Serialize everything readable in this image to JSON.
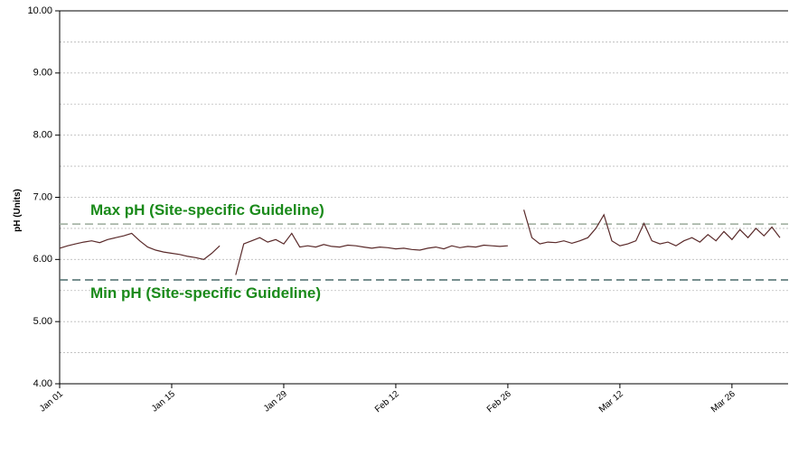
{
  "chart_data": {
    "type": "line",
    "y_label": "pH (Units)",
    "categories": [
      "Jan 01",
      null,
      null,
      null,
      null,
      null,
      null,
      null,
      null,
      null,
      null,
      null,
      null,
      null,
      "Jan 15",
      null,
      null,
      null,
      null,
      null,
      null,
      null,
      null,
      null,
      null,
      null,
      null,
      null,
      "Jan 29",
      null,
      null,
      null,
      null,
      null,
      null,
      null,
      null,
      null,
      null,
      null,
      null,
      null,
      "Feb 12",
      null,
      null,
      null,
      null,
      null,
      null,
      null,
      null,
      null,
      null,
      null,
      null,
      null,
      "Feb 26",
      null,
      null,
      null,
      null,
      null,
      null,
      null,
      null,
      null,
      null,
      null,
      null,
      null,
      "Mar 12",
      null,
      null,
      null,
      null,
      null,
      null,
      null,
      null,
      null,
      null,
      null,
      null,
      null,
      "Mar 26",
      null,
      null,
      null,
      null,
      null,
      null
    ],
    "series": [
      {
        "name": "pH",
        "color": "#5a2a2a",
        "values": [
          6.18,
          6.22,
          6.25,
          6.28,
          6.3,
          6.27,
          6.32,
          6.35,
          6.38,
          6.42,
          6.3,
          6.2,
          6.15,
          6.12,
          6.1,
          6.08,
          6.05,
          6.03,
          6.0,
          6.1,
          6.22,
          null,
          5.75,
          6.25,
          6.3,
          6.35,
          6.28,
          6.32,
          6.25,
          6.42,
          6.2,
          6.22,
          6.2,
          6.24,
          6.21,
          6.2,
          6.23,
          6.22,
          6.2,
          6.18,
          6.2,
          6.19,
          6.17,
          6.18,
          6.16,
          6.15,
          6.18,
          6.2,
          6.17,
          6.22,
          6.19,
          6.21,
          6.2,
          6.23,
          6.22,
          6.21,
          6.22,
          null,
          6.8,
          6.35,
          6.25,
          6.28,
          6.27,
          6.3,
          6.26,
          6.3,
          6.35,
          6.5,
          6.72,
          6.3,
          6.22,
          6.25,
          6.3,
          6.58,
          6.3,
          6.25,
          6.28,
          6.22,
          6.3,
          6.35,
          6.28,
          6.4,
          6.3,
          6.45,
          6.32,
          6.48,
          6.35,
          6.5,
          6.38,
          6.52,
          6.35
        ]
      }
    ],
    "guidelines": [
      {
        "label": "Max pH (Site-specific Guideline)",
        "value": 6.57,
        "color": "#9aaa9a"
      },
      {
        "label": "Min pH (Site-specific Guideline)",
        "value": 5.67,
        "color": "#4a6a6a"
      }
    ],
    "ylim": [
      4,
      10
    ],
    "yticks": [
      {
        "value": 4,
        "label": "4.00"
      },
      {
        "value": 5,
        "label": "5.00"
      },
      {
        "value": 6,
        "label": "6.00"
      },
      {
        "value": 7,
        "label": "7.00"
      },
      {
        "value": 8,
        "label": "8.00"
      },
      {
        "value": 9,
        "label": "9.00"
      },
      {
        "value": 10,
        "label": "10.00"
      }
    ],
    "minor_yticks": [
      4.5,
      5.5,
      6.5,
      7.5,
      8.5,
      9.5
    ],
    "grid": true
  }
}
